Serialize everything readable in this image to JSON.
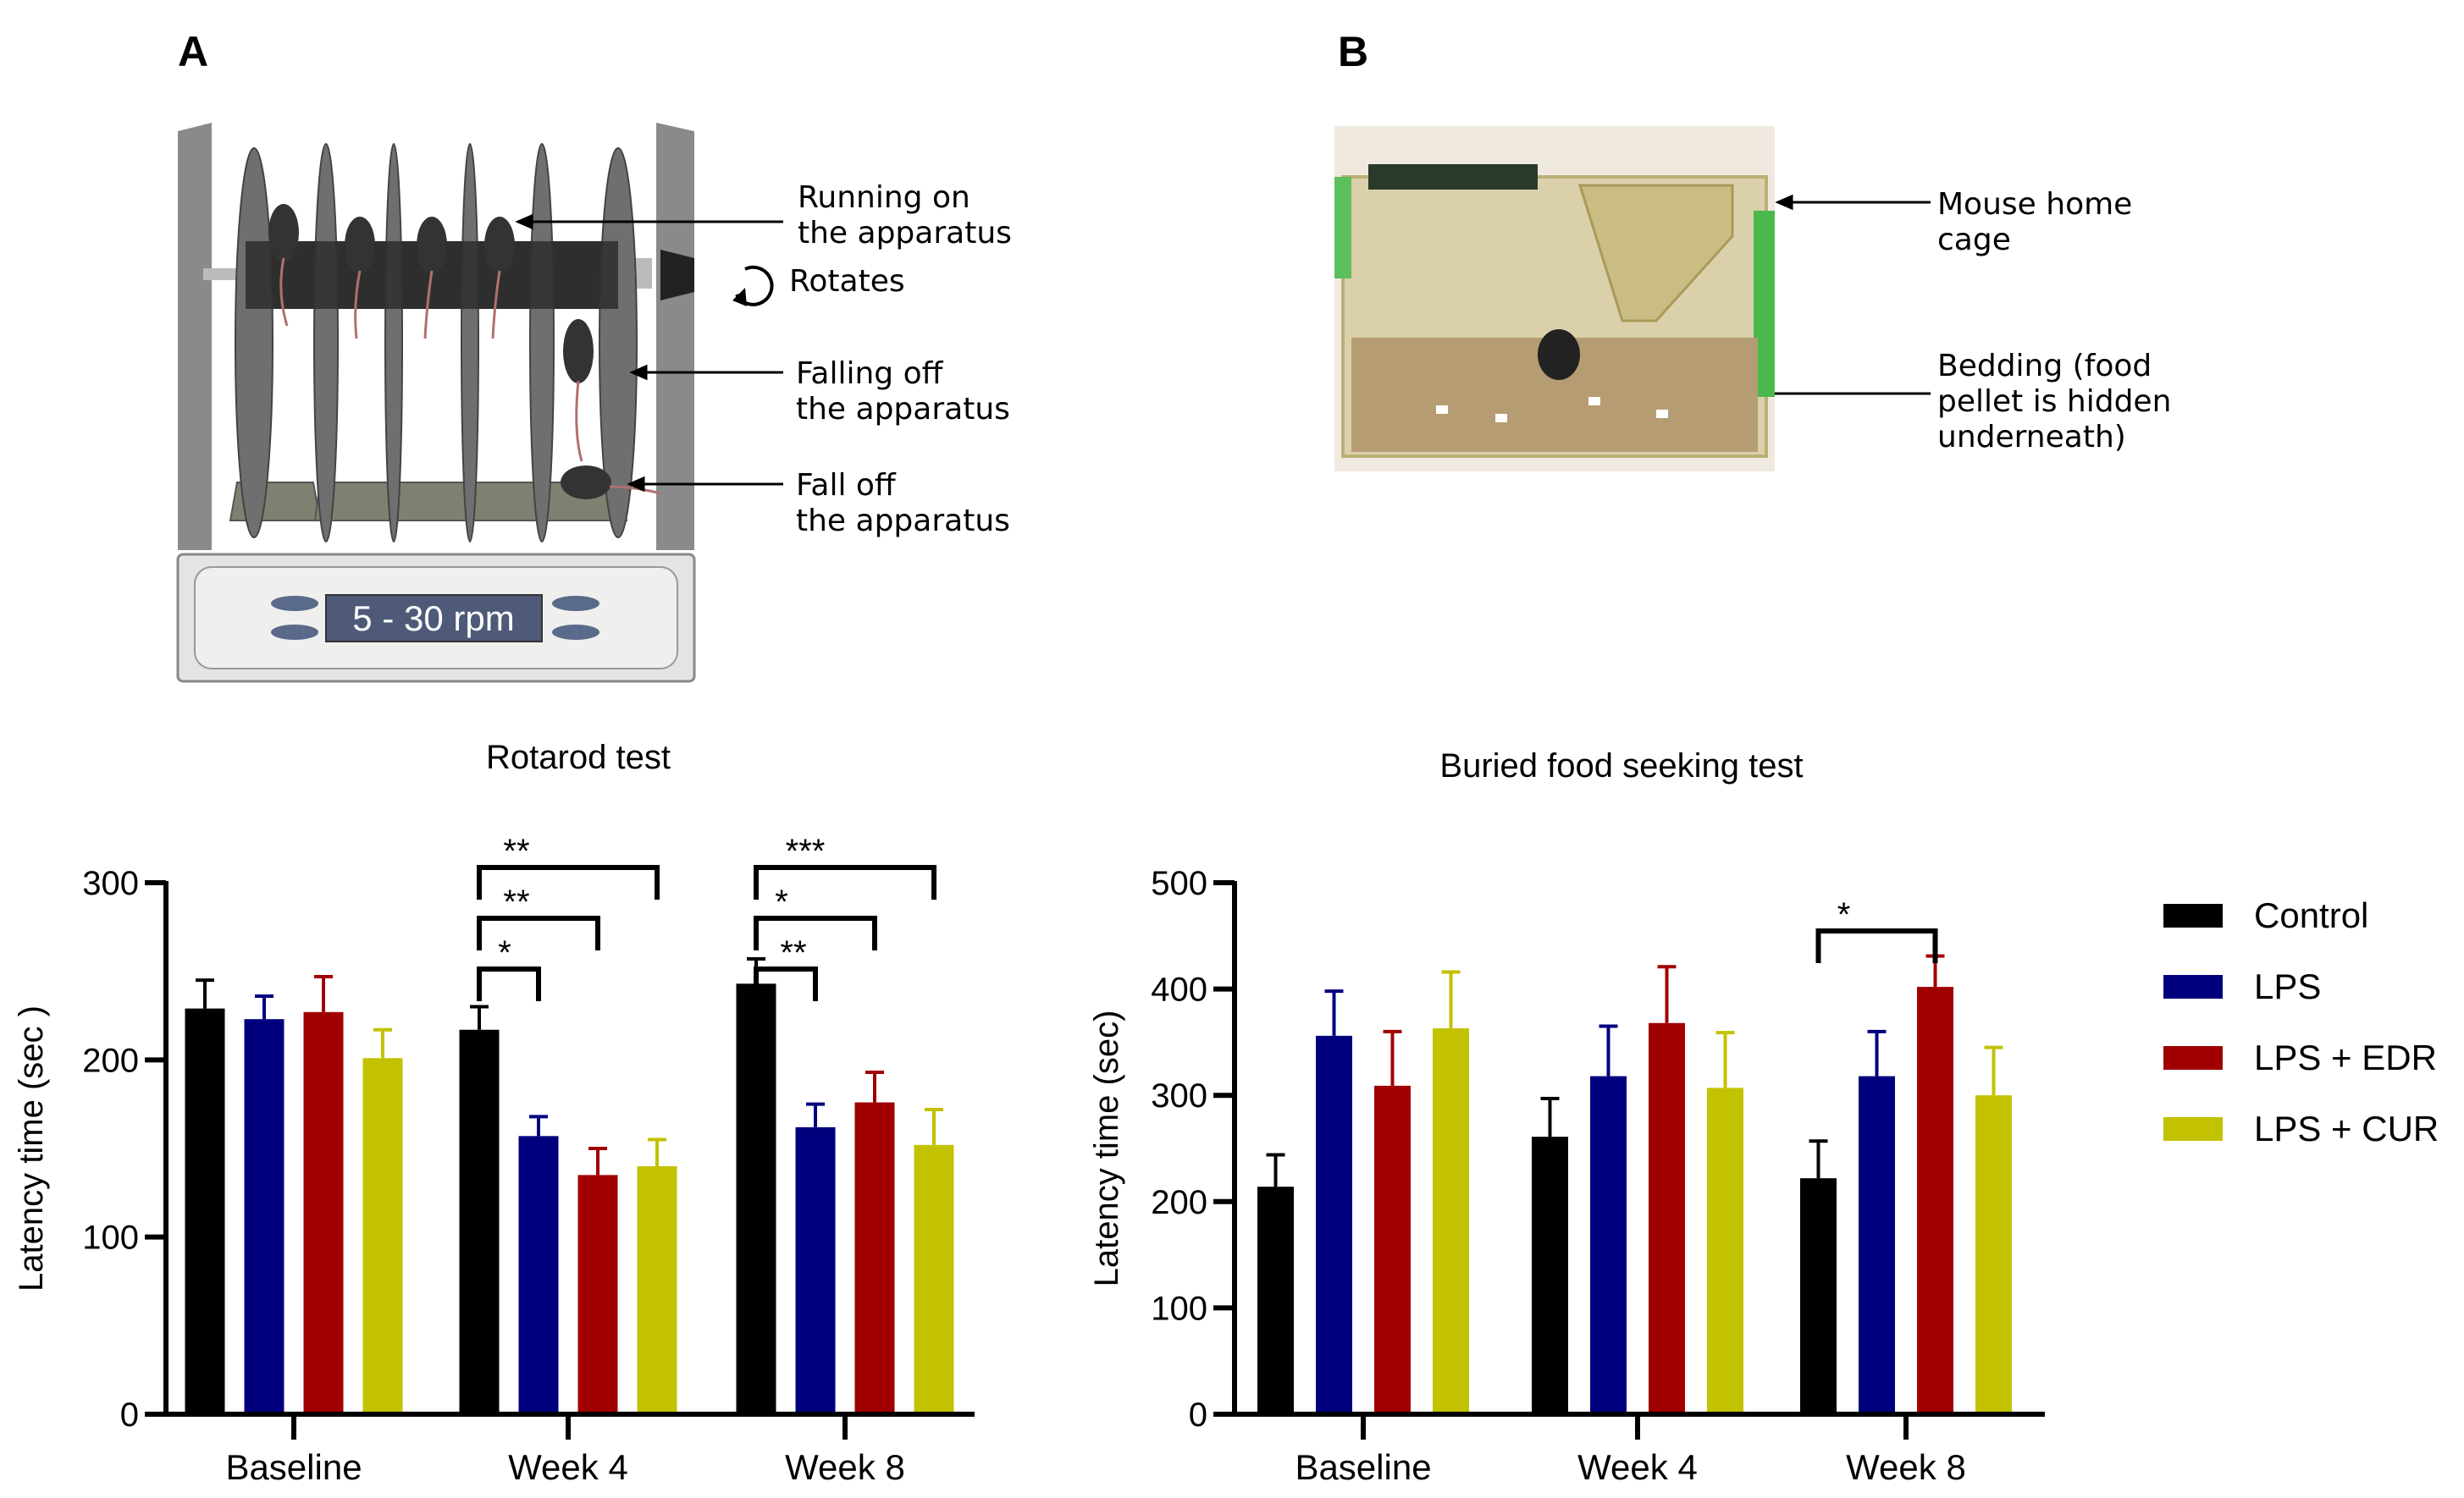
{
  "panel_a": {
    "label": "A",
    "display": "5 - 30 rpm",
    "annotations": {
      "running": "Running on\nthe apparatus",
      "rotates": "Rotates",
      "falling": "Falling off\nthe apparatus",
      "fall": "Fall off\nthe apparatus"
    }
  },
  "panel_b": {
    "label": "B",
    "annotations": {
      "cage": "Mouse home\ncage",
      "bedding": "Bedding (food\npellet is hidden\nunderneath)"
    }
  },
  "legend": {
    "placement": "right",
    "entries": [
      "Control",
      "LPS",
      "LPS + EDR",
      "LPS + CUR"
    ],
    "colors": [
      "#000000",
      "#00007f",
      "#a00000",
      "#c2c200"
    ]
  },
  "chart_data": [
    {
      "type": "bar",
      "title": "Rotarod test",
      "ylabel": "Latency time (sec )",
      "xlabel": "",
      "ylim": [
        0,
        300
      ],
      "yticks": [
        0,
        100,
        200,
        300
      ],
      "categories": [
        "Baseline",
        "Week 4",
        "Week 8"
      ],
      "series": [
        {
          "name": "Control",
          "values": [
            229,
            217,
            243
          ],
          "errors": [
            16,
            13,
            14
          ]
        },
        {
          "name": "LPS",
          "values": [
            223,
            157,
            162
          ],
          "errors": [
            13,
            11,
            13
          ]
        },
        {
          "name": "LPS + EDR",
          "values": [
            227,
            135,
            176
          ],
          "errors": [
            20,
            15,
            17
          ]
        },
        {
          "name": "LPS + CUR",
          "values": [
            201,
            140,
            152
          ],
          "errors": [
            16,
            15,
            20
          ]
        }
      ],
      "significance": [
        {
          "category": "Week 4",
          "from": "Control",
          "to": "LPS",
          "label": "*"
        },
        {
          "category": "Week 4",
          "from": "Control",
          "to": "LPS + EDR",
          "label": "**"
        },
        {
          "category": "Week 4",
          "from": "Control",
          "to": "LPS + CUR",
          "label": "**"
        },
        {
          "category": "Week 8",
          "from": "Control",
          "to": "LPS",
          "label": "**"
        },
        {
          "category": "Week 8",
          "from": "Control",
          "to": "LPS + EDR",
          "label": "*"
        },
        {
          "category": "Week 8",
          "from": "Control",
          "to": "LPS + CUR",
          "label": "***"
        }
      ]
    },
    {
      "type": "bar",
      "title": "Buried food seeking test",
      "ylabel": "Latency time (sec)",
      "xlabel": "",
      "ylim": [
        0,
        500
      ],
      "yticks": [
        0,
        100,
        200,
        300,
        400,
        500
      ],
      "categories": [
        "Baseline",
        "Week 4",
        "Week 8"
      ],
      "series": [
        {
          "name": "Control",
          "values": [
            214,
            261,
            222
          ],
          "errors": [
            30,
            36,
            35
          ]
        },
        {
          "name": "LPS",
          "values": [
            356,
            318,
            318
          ],
          "errors": [
            42,
            47,
            42
          ]
        },
        {
          "name": "LPS + EDR",
          "values": [
            309,
            368,
            402
          ],
          "errors": [
            51,
            53,
            29
          ]
        },
        {
          "name": "LPS + CUR",
          "values": [
            363,
            307,
            300
          ],
          "errors": [
            53,
            52,
            45
          ]
        }
      ],
      "significance": [
        {
          "category": "Week 8",
          "from": "Control",
          "to": "LPS + EDR",
          "label": "*"
        }
      ]
    }
  ]
}
